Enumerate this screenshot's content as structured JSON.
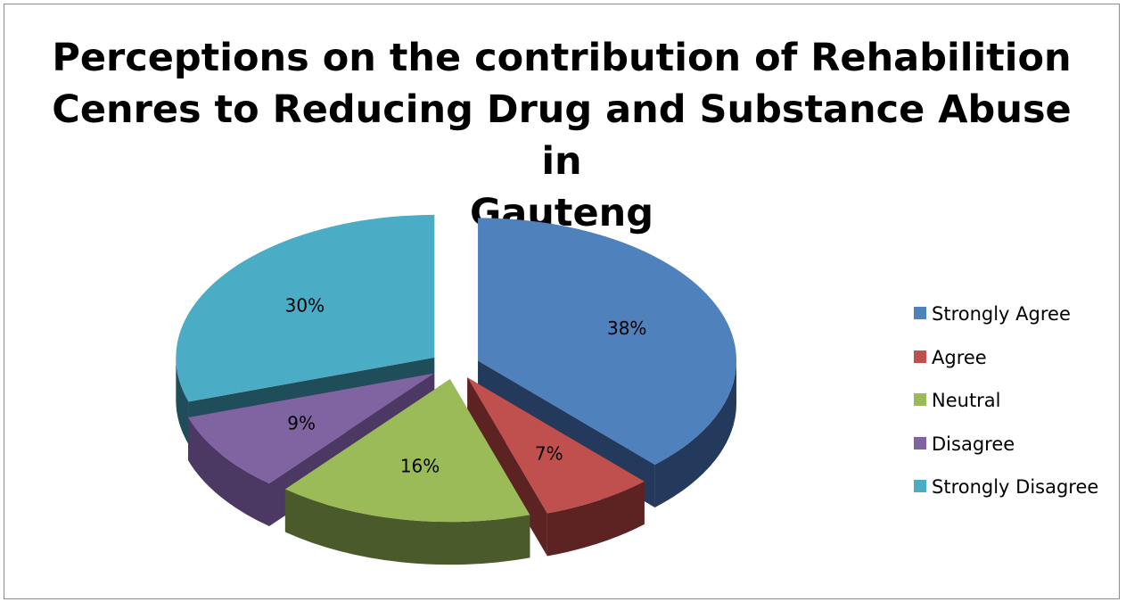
{
  "chart_data": {
    "type": "pie",
    "title_lines": [
      "Perceptions on the contribution of Rehabilition",
      "Cenres to Reducing Drug and Substance Abuse in",
      "Gauteng"
    ],
    "categories": [
      "Strongly Agree",
      "Agree",
      "Neutral",
      "Disagree",
      "Strongly Disagree"
    ],
    "values": [
      38,
      7,
      16,
      9,
      30
    ],
    "labels": [
      "38%",
      "7%",
      "16%",
      "9%",
      "30%"
    ],
    "colors": [
      "#4f81bd",
      "#c0504d",
      "#9bbb59",
      "#8064a2",
      "#4bacc6"
    ],
    "side_colors": [
      "#243a5c",
      "#5c2322",
      "#4a5a2a",
      "#4b3863",
      "#1f4d59"
    ],
    "exploded": true,
    "three_d": true,
    "legend_position": "right"
  }
}
